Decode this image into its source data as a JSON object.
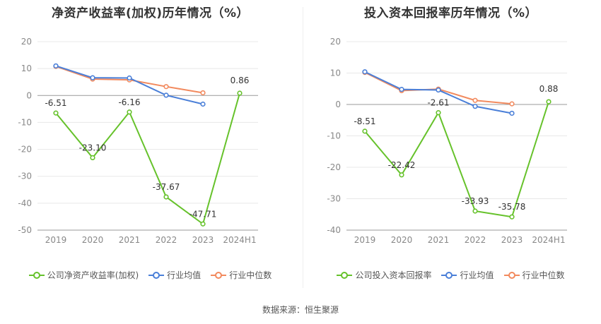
{
  "source": "数据来源：恒生聚源",
  "colors": {
    "company": "#66c22b",
    "avg": "#4a7fd8",
    "median": "#f28a5e",
    "grid": "#e8e8e8",
    "axis": "#999999"
  },
  "chart_data": [
    {
      "type": "line",
      "title": "净资产收益率(加权)历年情况（%）",
      "categories": [
        "2019",
        "2020",
        "2021",
        "2022",
        "2023",
        "2024H1"
      ],
      "ylim": [
        -50,
        20
      ],
      "yticks": [
        20,
        10,
        0,
        -10,
        -20,
        -30,
        -40,
        -50
      ],
      "series": [
        {
          "name": "公司净资产收益率(加权)",
          "key": "company",
          "values": [
            -6.51,
            -23.1,
            -6.16,
            -37.67,
            -47.71,
            0.86
          ],
          "labels": [
            "-6.51",
            "-23.10",
            "-6.16",
            "-37.67",
            "-47.71",
            "0.86"
          ]
        },
        {
          "name": "行业均值",
          "key": "avg",
          "values": [
            11.0,
            6.6,
            6.5,
            0.1,
            -3.2,
            null
          ]
        },
        {
          "name": "行业中位数",
          "key": "median",
          "values": [
            10.8,
            6.1,
            5.8,
            3.3,
            1.0,
            null
          ]
        }
      ]
    },
    {
      "type": "line",
      "title": "投入资本回报率历年情况（%）",
      "categories": [
        "2019",
        "2020",
        "2021",
        "2022",
        "2023",
        "2024H1"
      ],
      "ylim": [
        -40,
        20
      ],
      "yticks": [
        20,
        10,
        0,
        -10,
        -20,
        -30,
        -40
      ],
      "series": [
        {
          "name": "公司投入资本回报率",
          "key": "company",
          "values": [
            -8.51,
            -22.42,
            -2.61,
            -33.93,
            -35.78,
            0.88
          ],
          "labels": [
            "-8.51",
            "-22.42",
            "-2.61",
            "-33.93",
            "-35.78",
            "0.88"
          ]
        },
        {
          "name": "行业均值",
          "key": "avg",
          "values": [
            10.4,
            4.8,
            4.6,
            -0.6,
            -2.8,
            null
          ]
        },
        {
          "name": "行业中位数",
          "key": "median",
          "values": [
            10.2,
            4.4,
            4.9,
            1.3,
            0.2,
            null
          ]
        }
      ]
    }
  ]
}
